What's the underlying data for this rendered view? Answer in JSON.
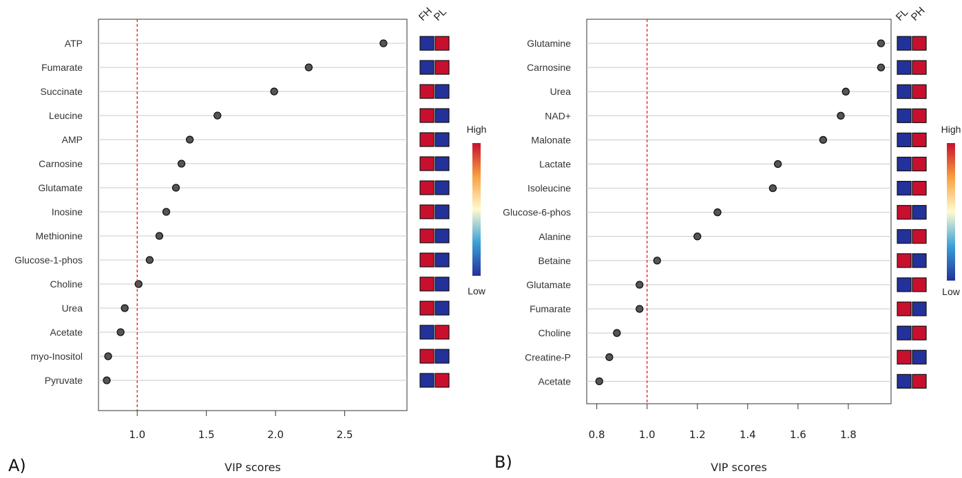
{
  "chart_data": [
    {
      "type": "dot",
      "panel_label": "A)",
      "xlabel": "VIP scores",
      "xlim": [
        0.72,
        2.95
      ],
      "xticks": [
        1.0,
        1.5,
        2.0,
        2.5
      ],
      "threshold": 1.0,
      "categories": [
        "ATP",
        "Fumarate",
        "Succinate",
        "Leucine",
        "AMP",
        "Carnosine",
        "Glutamate",
        "Inosine",
        "Methionine",
        "Glucose-1-phos",
        "Choline",
        "Urea",
        "Acetate",
        "myo-Inositol",
        "Pyruvate"
      ],
      "values": [
        2.78,
        2.24,
        1.99,
        1.58,
        1.38,
        1.32,
        1.28,
        1.21,
        1.16,
        1.09,
        1.01,
        0.91,
        0.88,
        0.79,
        0.78
      ],
      "groups": [
        "FH",
        "PL"
      ],
      "heat": [
        [
          "low",
          "high"
        ],
        [
          "low",
          "high"
        ],
        [
          "high",
          "low"
        ],
        [
          "high",
          "low"
        ],
        [
          "high",
          "low"
        ],
        [
          "high",
          "low"
        ],
        [
          "high",
          "low"
        ],
        [
          "high",
          "low"
        ],
        [
          "high",
          "low"
        ],
        [
          "high",
          "low"
        ],
        [
          "high",
          "low"
        ],
        [
          "high",
          "low"
        ],
        [
          "low",
          "high"
        ],
        [
          "high",
          "low"
        ],
        [
          "low",
          "high"
        ]
      ],
      "legend": {
        "high": "High",
        "low": "Low"
      }
    },
    {
      "type": "dot",
      "panel_label": "B)",
      "xlabel": "VIP scores",
      "xlim": [
        0.76,
        1.97
      ],
      "xticks": [
        0.8,
        1.0,
        1.2,
        1.4,
        1.6,
        1.8
      ],
      "threshold": 1.0,
      "categories": [
        "Glutamine",
        "Carnosine",
        "Urea",
        "NAD+",
        "Malonate",
        "Lactate",
        "Isoleucine",
        "Glucose-6-phos",
        "Alanine",
        "Betaine",
        "Glutamate",
        "Fumarate",
        "Choline",
        "Creatine-P",
        "Acetate"
      ],
      "values": [
        1.93,
        1.93,
        1.79,
        1.77,
        1.7,
        1.52,
        1.5,
        1.28,
        1.2,
        1.04,
        0.97,
        0.97,
        0.88,
        0.85,
        0.81
      ],
      "groups": [
        "FL",
        "PH"
      ],
      "heat": [
        [
          "low",
          "high"
        ],
        [
          "low",
          "high"
        ],
        [
          "low",
          "high"
        ],
        [
          "low",
          "high"
        ],
        [
          "low",
          "high"
        ],
        [
          "low",
          "high"
        ],
        [
          "low",
          "high"
        ],
        [
          "high",
          "low"
        ],
        [
          "low",
          "high"
        ],
        [
          "high",
          "low"
        ],
        [
          "low",
          "high"
        ],
        [
          "high",
          "low"
        ],
        [
          "low",
          "high"
        ],
        [
          "high",
          "low"
        ],
        [
          "low",
          "high"
        ]
      ],
      "legend": {
        "high": "High",
        "low": "Low"
      }
    }
  ],
  "colors": {
    "high": "#c8102e",
    "low": "#23319a",
    "dot": "#555555",
    "threshold": "#e0201b",
    "grid": "#c8c8c8"
  }
}
